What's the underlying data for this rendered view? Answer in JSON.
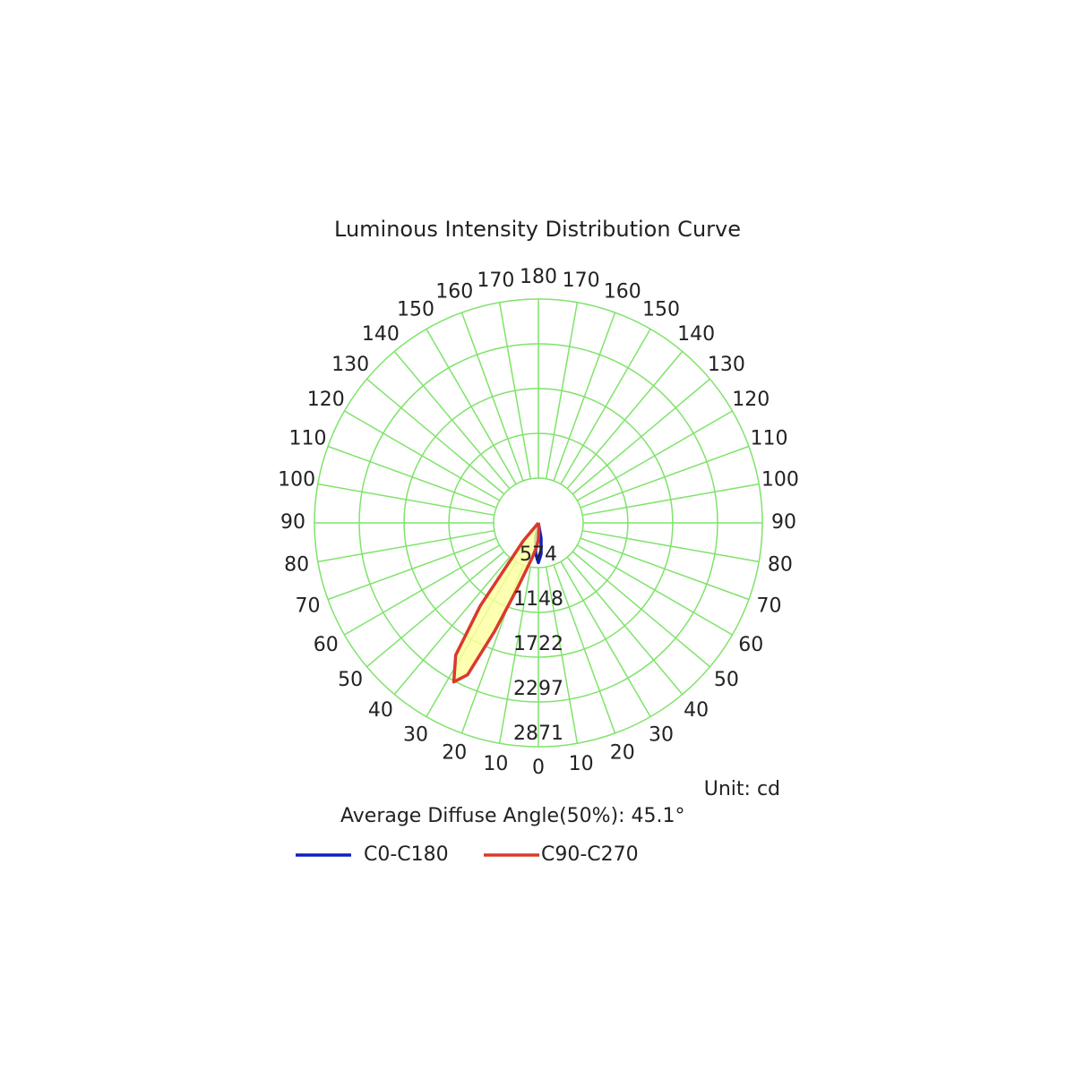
{
  "chart_data": {
    "type": "polar",
    "title": "Luminous Intensity Distribution Curve",
    "unit_label": "Unit: cd",
    "annotation": "Average Diffuse Angle(50%): 45.1°",
    "rlim": [
      0,
      2871
    ],
    "rticks": [
      574,
      1148,
      1722,
      2297,
      2871
    ],
    "angle_ticks": [
      0,
      10,
      20,
      30,
      40,
      50,
      60,
      70,
      80,
      90,
      100,
      110,
      120,
      130,
      140,
      150,
      160,
      170,
      180
    ],
    "grid_color": "#7fe36a",
    "series": [
      {
        "name": "C0-C180",
        "color": "#1020c0",
        "fill": null,
        "angles": [
          -15,
          -10,
          -5,
          0,
          5,
          10,
          15
        ],
        "values": [
          0,
          200,
          400,
          510,
          400,
          200,
          0
        ]
      },
      {
        "name": "C90-C270",
        "color": "#d83a2a",
        "fill": "#ffff9e",
        "angles": [
          -45,
          -40,
          -35,
          -32,
          -28,
          -25,
          -22,
          -18,
          -14,
          -10,
          -5,
          0,
          5,
          10
        ],
        "values": [
          0,
          300,
          1300,
          2000,
          2310,
          2150,
          1500,
          900,
          600,
          450,
          320,
          220,
          80,
          0
        ]
      }
    ]
  }
}
